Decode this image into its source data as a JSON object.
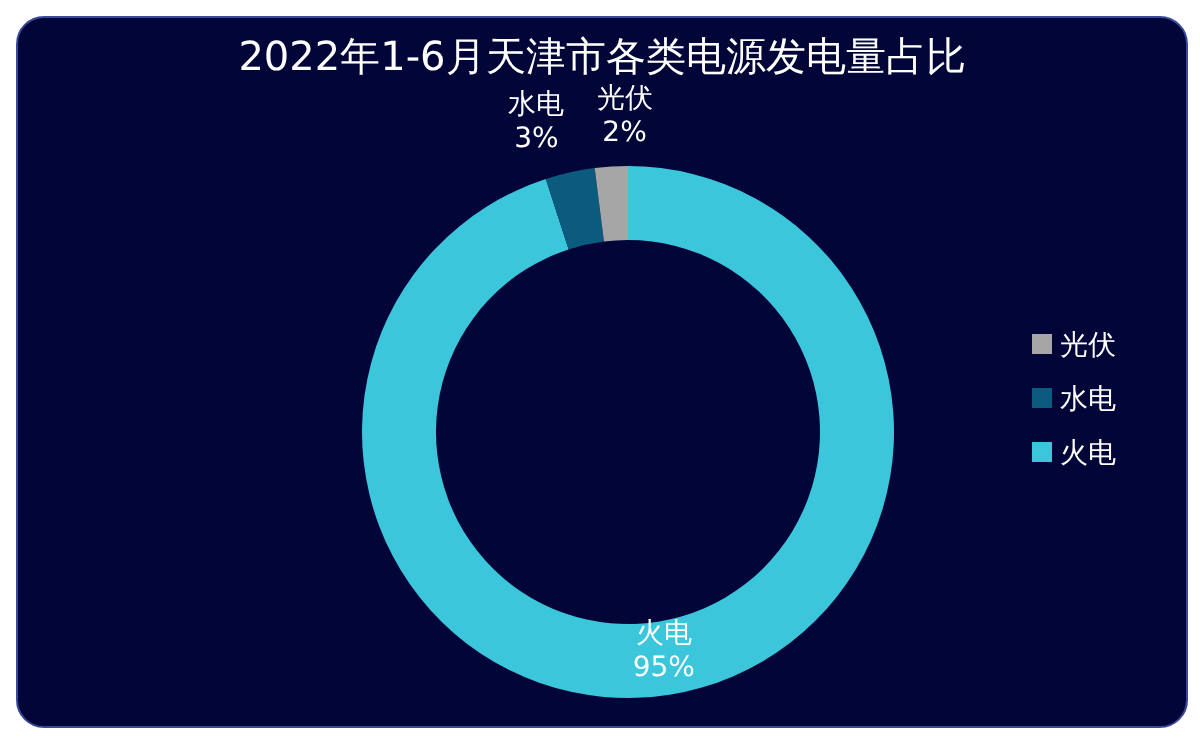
{
  "chart_data": {
    "type": "donut",
    "title": "2022年1-6月天津市各类电源发电量占比",
    "categories": [
      "火电",
      "水电",
      "光伏"
    ],
    "values": [
      95,
      3,
      2
    ],
    "value_labels": [
      "95%",
      "3%",
      "2%"
    ],
    "colors": [
      "#3cc6dc",
      "#0b5b7e",
      "#a6a6a6"
    ],
    "legend": "right"
  }
}
